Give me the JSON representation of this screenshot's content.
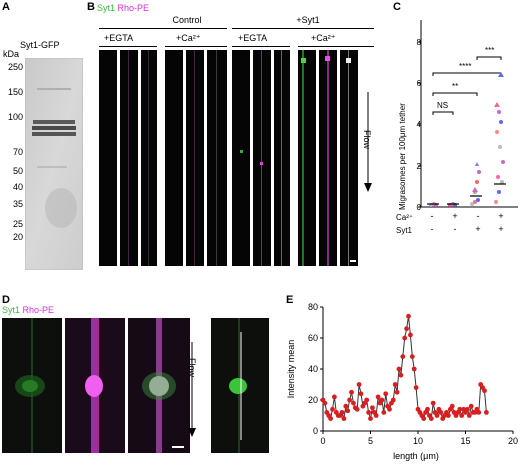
{
  "panels": {
    "A": "A",
    "B": "B",
    "C": "C",
    "D": "D",
    "E": "E"
  },
  "panel_a": {
    "kda_label": "kDa",
    "protein_label": "Syt1-GFP",
    "markers": [
      "250",
      "150",
      "100",
      "70",
      "50",
      "40",
      "35",
      "25",
      "20"
    ]
  },
  "panel_b": {
    "channel1": "Syt1",
    "channel2": "Rho-PE",
    "group_control": "Control",
    "group_syt1": "+Syt1",
    "cond_egta": "+EGTA",
    "cond_ca": "+Ca²⁺",
    "cond_egta_2": "+EGTA",
    "cond_ca_2": "+Ca²⁺",
    "flow_label": "Flow"
  },
  "panel_c": {
    "ylabel": "Migrasomes per 100μm tether",
    "yticks": [
      "0",
      "2",
      "4",
      "6",
      "8"
    ],
    "sig": [
      "NS",
      "**",
      "****",
      "***"
    ],
    "row1_label": "Ca²⁺",
    "row2_label": "Syt1",
    "row1_values": [
      "-",
      "+",
      "-",
      "+"
    ],
    "row2_values": [
      "-",
      "-",
      "+",
      "+"
    ]
  },
  "panel_d": {
    "channel1": "Syt1",
    "channel2": "Rho-PE",
    "flow_label": "Flow"
  },
  "chart_data": {
    "type": "line",
    "title": "",
    "xlabel": "length (μm)",
    "ylabel": "Intensity mean",
    "xlim": [
      0,
      20
    ],
    "ylim": [
      0,
      80
    ],
    "xticks": [
      "0",
      "5",
      "10",
      "15",
      "20"
    ],
    "yticks": [
      "0",
      "20",
      "40",
      "60",
      "80"
    ],
    "color": "#d81e1e",
    "x": [
      0.0,
      0.2,
      0.4,
      0.6,
      0.8,
      1.0,
      1.2,
      1.4,
      1.6,
      1.8,
      2.0,
      2.2,
      2.4,
      2.6,
      2.8,
      3.0,
      3.2,
      3.4,
      3.6,
      3.8,
      4.0,
      4.2,
      4.4,
      4.6,
      4.8,
      5.0,
      5.2,
      5.4,
      5.6,
      5.8,
      6.0,
      6.2,
      6.4,
      6.6,
      6.8,
      7.0,
      7.2,
      7.4,
      7.6,
      7.8,
      8.0,
      8.2,
      8.4,
      8.6,
      8.8,
      9.0,
      9.2,
      9.4,
      9.6,
      9.8,
      10.0,
      10.2,
      10.4,
      10.6,
      10.8,
      11.0,
      11.2,
      11.4,
      11.6,
      11.8,
      12.0,
      12.2,
      12.4,
      12.6,
      12.8,
      13.0,
      13.2,
      13.4,
      13.6,
      13.8,
      14.0,
      14.2,
      14.4,
      14.6,
      14.8,
      15.0,
      15.2,
      15.4,
      15.6,
      15.8,
      16.0,
      16.2,
      16.4,
      16.6,
      16.8,
      17.0,
      17.2
    ],
    "y": [
      20,
      18,
      12,
      10,
      8,
      14,
      22,
      12,
      10,
      10,
      12,
      8,
      16,
      13,
      20,
      25,
      18,
      15,
      14,
      30,
      24,
      16,
      18,
      20,
      12,
      8,
      15,
      12,
      10,
      22,
      18,
      20,
      12,
      24,
      16,
      14,
      18,
      20,
      30,
      25,
      40,
      36,
      48,
      60,
      66,
      74,
      62,
      48,
      40,
      28,
      14,
      12,
      10,
      8,
      12,
      14,
      10,
      8,
      18,
      12,
      10,
      14,
      12,
      8,
      10,
      12,
      10,
      14,
      16,
      12,
      10,
      12,
      14,
      10,
      14,
      12,
      14,
      10,
      16,
      12,
      12,
      14,
      12,
      30,
      28,
      26,
      12
    ]
  }
}
